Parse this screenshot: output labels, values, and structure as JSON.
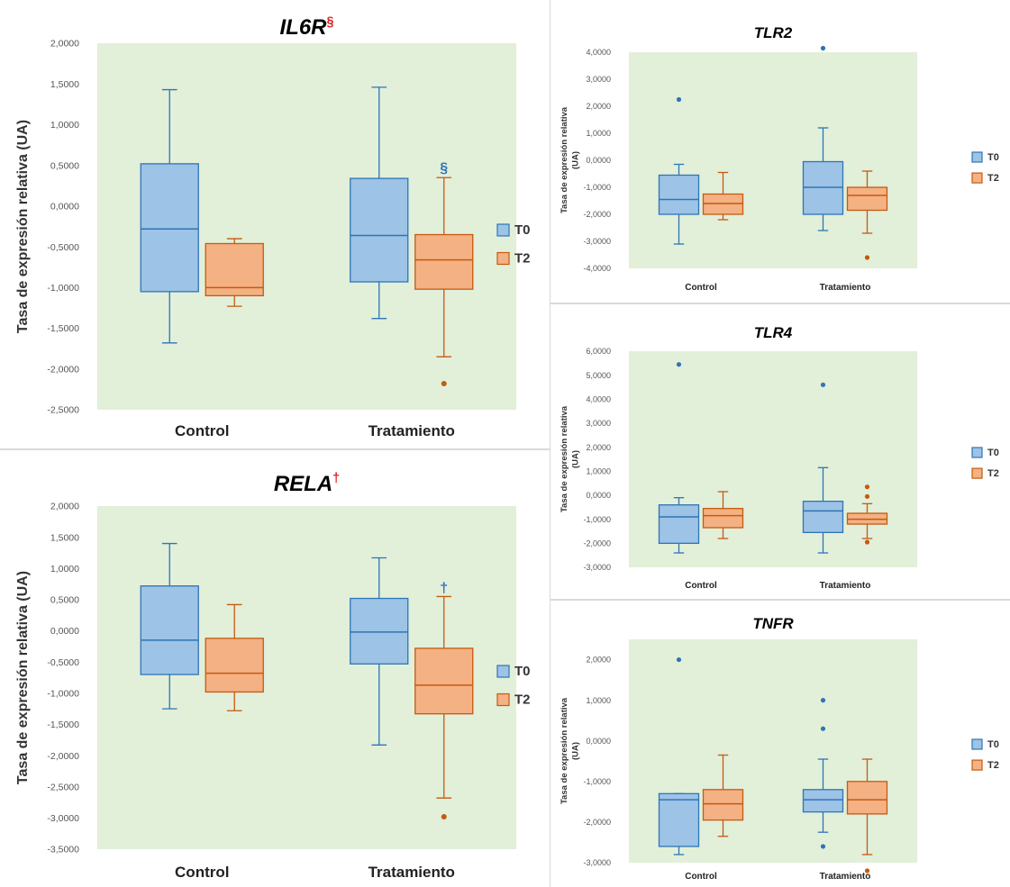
{
  "colors": {
    "plot_bg": "#e2efd9",
    "t0_fill": "#9dc3e6",
    "t0_stroke": "#2e75b6",
    "t2_fill": "#f4b183",
    "t2_stroke": "#c55a11",
    "t0_outlier": "#2e75b6",
    "t2_outlier": "#c55a11",
    "mark_red": "#e02020"
  },
  "legend": {
    "t0": "T0",
    "t2": "T2"
  },
  "chart_data": [
    {
      "id": "il6r",
      "type": "boxplot",
      "title": "IL6R",
      "title_mark": "§",
      "ylabel": "Tasa de expresión relativa (UA)",
      "ylim": [
        -2.5,
        2.0
      ],
      "yticks": [
        "2,0000",
        "1,5000",
        "1,0000",
        "0,5000",
        "0,0000",
        "-0,5000",
        "-1,0000",
        "-1,5000",
        "-2,0000",
        "-2,5000"
      ],
      "categories": [
        "Control",
        "Tratamiento"
      ],
      "legend_position": "right",
      "series": [
        {
          "name": "T0",
          "boxes": [
            {
              "min": -1.68,
              "q1": -1.05,
              "median": -0.28,
              "q3": 0.52,
              "max": 1.43,
              "outliers": []
            },
            {
              "min": -1.38,
              "q1": -0.93,
              "median": -0.36,
              "q3": 0.34,
              "max": 1.46,
              "outliers": []
            }
          ]
        },
        {
          "name": "T2",
          "boxes": [
            {
              "min": -1.23,
              "q1": -1.1,
              "median": -1.0,
              "q3": -0.46,
              "max": -0.4,
              "outliers": []
            },
            {
              "min": -1.85,
              "q1": -1.02,
              "median": -0.66,
              "q3": -0.35,
              "max": 0.35,
              "outliers": [
                -2.18
              ]
            }
          ]
        }
      ],
      "annotation": {
        "category": 1,
        "value": 0.48,
        "text": "§"
      }
    },
    {
      "id": "rela",
      "type": "boxplot",
      "title": "RELA",
      "title_mark": "†",
      "ylabel": "Tasa de expresión relativa (UA)",
      "ylim": [
        -3.5,
        2.0
      ],
      "yticks": [
        "2,0000",
        "1,5000",
        "1,0000",
        "0,5000",
        "0,0000",
        "-0,5000",
        "-1,0000",
        "-1,5000",
        "-2,0000",
        "-2,5000",
        "-3,0000",
        "-3,5000"
      ],
      "categories": [
        "Control",
        "Tratamiento"
      ],
      "legend_position": "right",
      "series": [
        {
          "name": "T0",
          "boxes": [
            {
              "min": -1.25,
              "q1": -0.7,
              "median": -0.15,
              "q3": 0.72,
              "max": 1.4,
              "outliers": []
            },
            {
              "min": -1.83,
              "q1": -0.53,
              "median": -0.02,
              "q3": 0.52,
              "max": 1.17,
              "outliers": []
            }
          ]
        },
        {
          "name": "T2",
          "boxes": [
            {
              "min": -1.28,
              "q1": -0.98,
              "median": -0.68,
              "q3": -0.12,
              "max": 0.42,
              "outliers": []
            },
            {
              "min": -2.68,
              "q1": -1.33,
              "median": -0.87,
              "q3": -0.28,
              "max": 0.55,
              "outliers": [
                -2.98
              ]
            }
          ]
        }
      ],
      "annotation": {
        "category": 1,
        "value": 0.7,
        "text": "†"
      }
    },
    {
      "id": "tlr2",
      "type": "boxplot",
      "title": "TLR2",
      "ylabel_lines": [
        "Tasa de expresión relativa",
        "(UA)"
      ],
      "ylim": [
        -4.0,
        4.0
      ],
      "yticks": [
        "4,0000",
        "3,0000",
        "2,0000",
        "1,0000",
        "0,0000",
        "-1,0000",
        "-2,0000",
        "-3,0000",
        "-4,0000"
      ],
      "categories": [
        "Control",
        "Tratamiento"
      ],
      "legend_position": "right",
      "series": [
        {
          "name": "T0",
          "boxes": [
            {
              "min": -3.1,
              "q1": -2.0,
              "median": -1.45,
              "q3": -0.55,
              "max": -0.15,
              "outliers": [
                2.25
              ]
            },
            {
              "min": -2.6,
              "q1": -2.0,
              "median": -1.0,
              "q3": -0.05,
              "max": 1.2,
              "outliers": [
                4.15
              ]
            }
          ]
        },
        {
          "name": "T2",
          "boxes": [
            {
              "min": -2.2,
              "q1": -2.0,
              "median": -1.6,
              "q3": -1.25,
              "max": -0.45,
              "outliers": []
            },
            {
              "min": -2.7,
              "q1": -1.85,
              "median": -1.3,
              "q3": -1.0,
              "max": -0.4,
              "outliers": [
                -3.6
              ]
            }
          ]
        }
      ]
    },
    {
      "id": "tlr4",
      "type": "boxplot",
      "title": "TLR4",
      "ylabel_lines": [
        "Tasa de expresión relativa",
        "(UA)"
      ],
      "ylim": [
        -3.0,
        6.0
      ],
      "yticks": [
        "6,0000",
        "5,0000",
        "4,0000",
        "3,0000",
        "2,0000",
        "1,0000",
        "0,0000",
        "-1,0000",
        "-2,0000",
        "-3,0000"
      ],
      "categories": [
        "Control",
        "Tratamiento"
      ],
      "legend_position": "right",
      "series": [
        {
          "name": "T0",
          "boxes": [
            {
              "min": -2.4,
              "q1": -2.0,
              "median": -0.9,
              "q3": -0.4,
              "max": -0.1,
              "outliers": [
                5.45
              ]
            },
            {
              "min": -2.4,
              "q1": -1.55,
              "median": -0.65,
              "q3": -0.25,
              "max": 1.15,
              "outliers": [
                4.6
              ]
            }
          ]
        },
        {
          "name": "T2",
          "boxes": [
            {
              "min": -1.8,
              "q1": -1.35,
              "median": -0.85,
              "q3": -0.55,
              "max": 0.15,
              "outliers": []
            },
            {
              "min": -1.8,
              "q1": -1.2,
              "median": -1.0,
              "q3": -0.75,
              "max": -0.35,
              "outliers": [
                0.35,
                -0.05,
                -1.95
              ]
            }
          ]
        }
      ]
    },
    {
      "id": "tnfr",
      "type": "boxplot",
      "title": "TNFR",
      "ylabel_lines": [
        "Tasa de expresión relativa",
        "(UA)"
      ],
      "ylim": [
        -3.0,
        2.5
      ],
      "yticks": [
        "2,0000",
        "1,0000",
        "0,0000",
        "-1,0000",
        "-2,0000",
        "-3,0000"
      ],
      "categories": [
        "Control",
        "Tratamiento"
      ],
      "legend_position": "right",
      "series": [
        {
          "name": "T0",
          "boxes": [
            {
              "min": -2.8,
              "q1": -2.6,
              "median": -1.45,
              "q3": -1.3,
              "max": -1.3,
              "outliers": [
                2.0
              ]
            },
            {
              "min": -2.25,
              "q1": -1.75,
              "median": -1.45,
              "q3": -1.2,
              "max": -0.45,
              "outliers": [
                1.0,
                0.3,
                -2.6
              ]
            }
          ]
        },
        {
          "name": "T2",
          "boxes": [
            {
              "min": -2.35,
              "q1": -1.95,
              "median": -1.55,
              "q3": -1.2,
              "max": -0.35,
              "outliers": []
            },
            {
              "min": -2.8,
              "q1": -1.8,
              "median": -1.45,
              "q3": -1.0,
              "max": -0.45,
              "outliers": [
                -3.2
              ]
            }
          ]
        }
      ]
    }
  ]
}
